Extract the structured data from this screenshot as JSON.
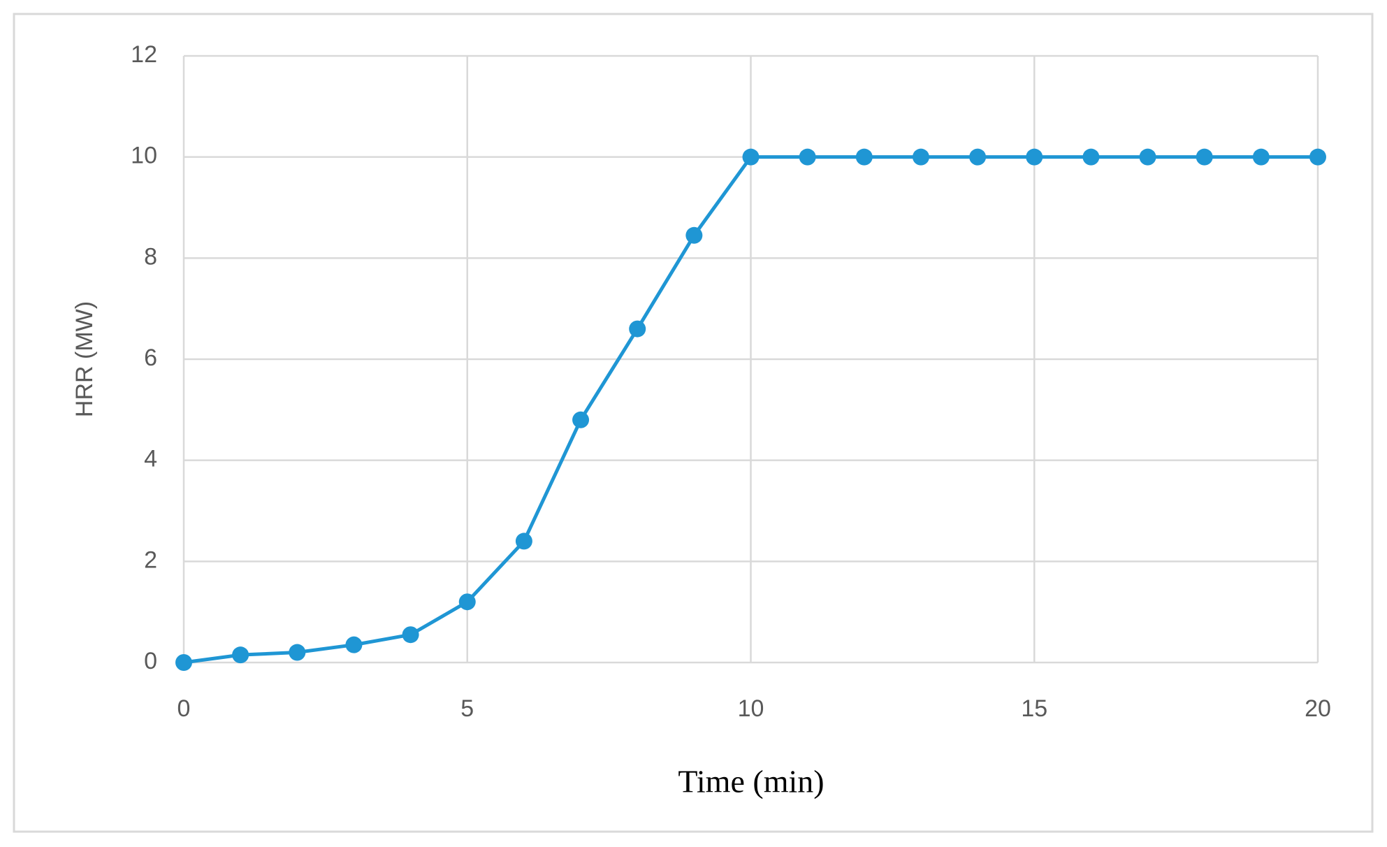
{
  "chart_data": {
    "type": "line",
    "x_label": "Time (min)",
    "y_label": "HRR (MW)",
    "x": [
      0,
      1,
      2,
      3,
      4,
      5,
      6,
      7,
      8,
      9,
      10,
      11,
      12,
      13,
      14,
      15,
      16,
      17,
      18,
      19,
      20
    ],
    "values": [
      0,
      0.15,
      0.2,
      0.35,
      0.55,
      1.2,
      2.4,
      4.8,
      6.6,
      8.45,
      10,
      10,
      10,
      10,
      10,
      10,
      10,
      10,
      10,
      10,
      10
    ],
    "color": "#1f96d4",
    "xlim": [
      0,
      20
    ],
    "xticks": [
      0,
      5,
      10,
      15,
      20
    ],
    "ylim": [
      0,
      12
    ],
    "yticks": [
      0,
      2,
      4,
      6,
      8,
      10,
      12
    ],
    "grid": true
  }
}
